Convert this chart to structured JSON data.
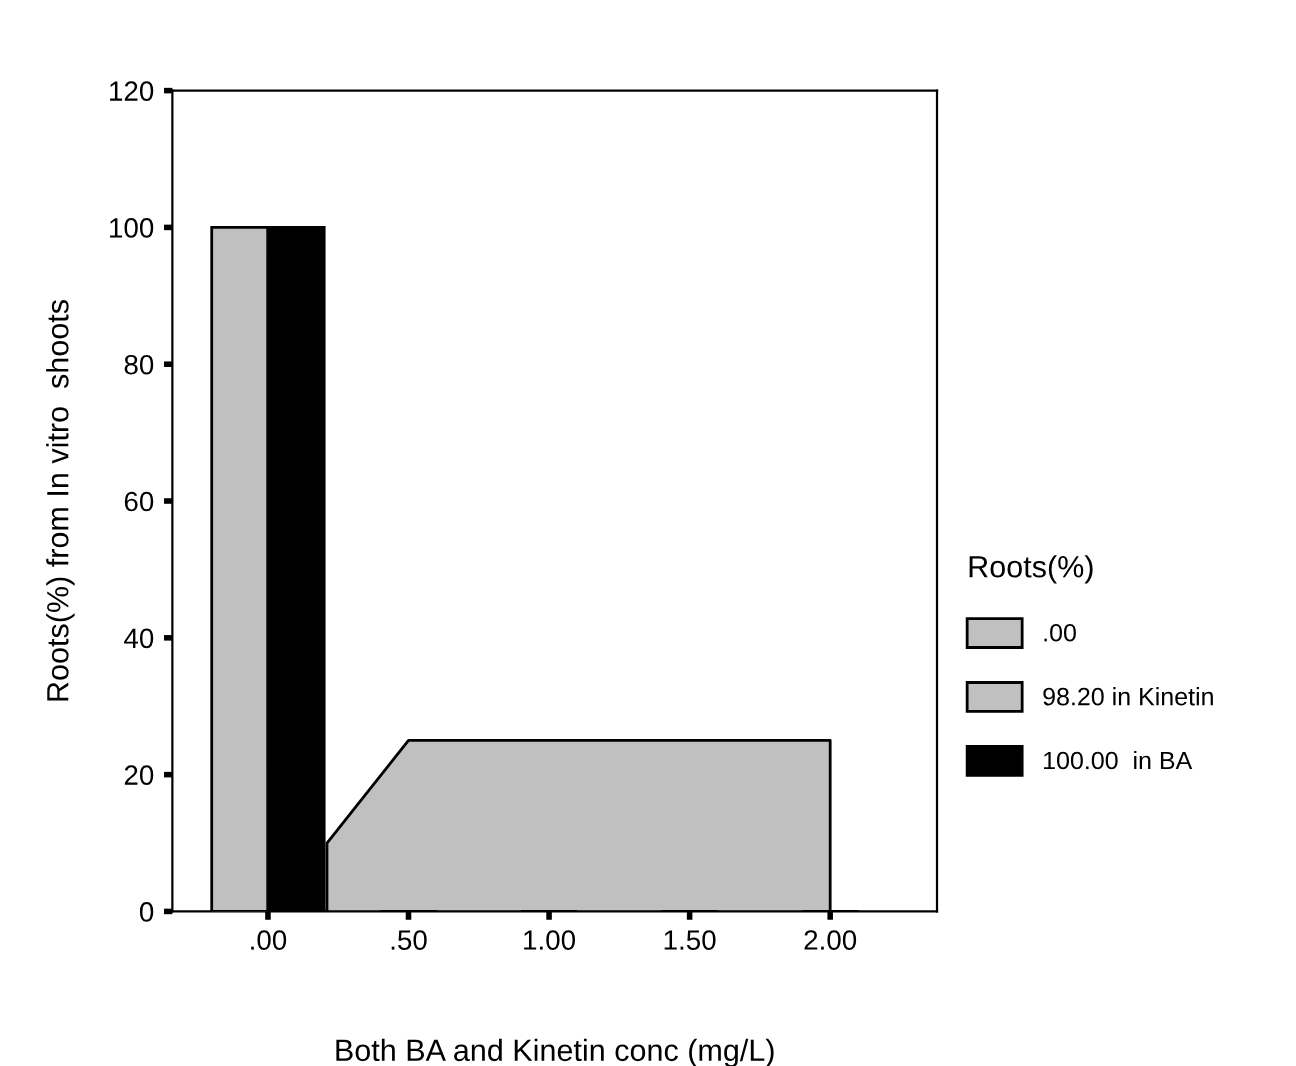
{
  "chart_data": {
    "type": "bar",
    "xlabel": "Both BA and Kinetin conc (mg/L)",
    "ylabel": "Roots(%) from In vitro  shoots",
    "legend_title": "Roots(%)",
    "series": [
      {
        "name": ".00",
        "color": "#c0c0c0",
        "x": [
          -0.1
        ],
        "values": [
          100
        ]
      },
      {
        "name": "98.20 in Kinetin",
        "type": "area",
        "color": "#c0c0c0",
        "x": [
          0.21,
          0.5,
          2.0
        ],
        "values": [
          10,
          25,
          25
        ]
      },
      {
        "name": "100.00  in BA",
        "color": "#000000",
        "x": [
          0.1,
          0.5,
          1.0,
          1.5,
          2.0
        ],
        "values": [
          100,
          0,
          0,
          0,
          0
        ]
      }
    ],
    "xlim": [
      -0.34,
      2.38
    ],
    "xticks": [
      {
        "value": 0,
        "label": ".00"
      },
      {
        "value": 0.5,
        "label": ".50"
      },
      {
        "value": 1.0,
        "label": "1.00"
      },
      {
        "value": 1.5,
        "label": "1.50"
      },
      {
        "value": 2.0,
        "label": "2.00"
      }
    ],
    "ylim": [
      0,
      120
    ],
    "yticks": [
      0,
      20,
      40,
      60,
      80,
      100,
      120
    ],
    "grid": false,
    "legend": "right"
  }
}
